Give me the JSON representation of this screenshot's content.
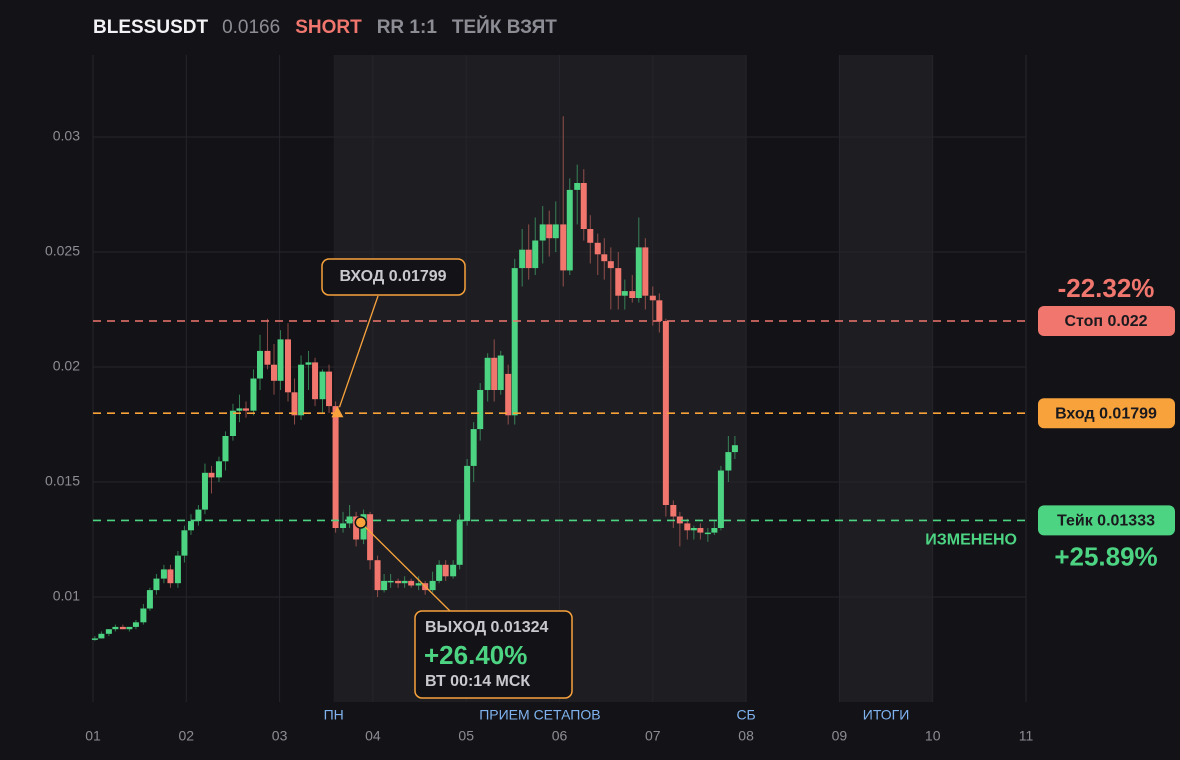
{
  "chart_data": {
    "type": "candlestick",
    "title": "BLESSUSDT",
    "price": "0.0166",
    "side": "SHORT",
    "rr": "RR 1:1",
    "status": "ТЕЙК ВЗЯТ",
    "up_color": "#4cd483",
    "down_color": "#f0766e",
    "grid": true,
    "xlim": [
      1,
      11
    ],
    "xticks": [
      {
        "value": 1,
        "label": "01"
      },
      {
        "value": 2,
        "label": "02"
      },
      {
        "value": 3,
        "label": "03"
      },
      {
        "value": 4,
        "label": "04"
      },
      {
        "value": 5,
        "label": "05"
      },
      {
        "value": 6,
        "label": "06"
      },
      {
        "value": 7,
        "label": "07"
      },
      {
        "value": 8,
        "label": "08"
      },
      {
        "value": 9,
        "label": "09"
      },
      {
        "value": 10,
        "label": "10"
      },
      {
        "value": 11,
        "label": "11"
      }
    ],
    "ylim": [
      0.005435,
      0.033565
    ],
    "yticks": [
      0.01,
      0.015,
      0.02,
      0.025,
      0.03
    ],
    "shaded": [
      [
        3.58,
        8
      ],
      [
        9,
        10
      ]
    ],
    "sessions": [
      {
        "label": "ПН",
        "x": 3.58
      },
      {
        "label": "ПРИЕМ СЕТАПОВ",
        "x": 5.79
      },
      {
        "label": "СБ",
        "x": 8
      },
      {
        "label": "ИТОГИ",
        "x": 9.5
      }
    ],
    "x": [
      1.02,
      1.09,
      1.17,
      1.24,
      1.32,
      1.39,
      1.46,
      1.54,
      1.61,
      1.68,
      1.76,
      1.83,
      1.91,
      1.98,
      2.05,
      2.13,
      2.2,
      2.27,
      2.35,
      2.42,
      2.5,
      2.57,
      2.64,
      2.72,
      2.79,
      2.87,
      2.94,
      3.01,
      3.09,
      3.16,
      3.23,
      3.31,
      3.38,
      3.46,
      3.53,
      3.6,
      3.68,
      3.75,
      3.82,
      3.9,
      3.97,
      4.05,
      4.12,
      4.19,
      4.27,
      4.34,
      4.41,
      4.49,
      4.56,
      4.64,
      4.71,
      4.78,
      4.86,
      4.93,
      5.01,
      5.08,
      5.15,
      5.23,
      5.3,
      5.37,
      5.45,
      5.52,
      5.6,
      5.67,
      5.74,
      5.82,
      5.89,
      5.96,
      6.04,
      6.11,
      6.19,
      6.26,
      6.33,
      6.41,
      6.48,
      6.55,
      6.63,
      6.7,
      6.78,
      6.85,
      6.92,
      7,
      7.07,
      7.14,
      7.22,
      7.29,
      7.37,
      7.44,
      7.51,
      7.59,
      7.66,
      7.73,
      7.81,
      7.88
    ],
    "open": [
      0.0082,
      0.0082,
      0.0084,
      0.0086,
      0.0087,
      0.0086,
      0.0087,
      0.0089,
      0.0095,
      0.0103,
      0.0108,
      0.0112,
      0.0106,
      0.0118,
      0.0129,
      0.0133,
      0.0138,
      0.0154,
      0.0152,
      0.0159,
      0.017,
      0.0181,
      0.0182,
      0.0181,
      0.0195,
      0.0207,
      0.0201,
      0.0194,
      0.0212,
      0.0189,
      0.0179,
      0.0201,
      0.0202,
      0.0186,
      0.0198,
      0.0183,
      0.013,
      0.0132,
      0.0135,
      0.0125,
      0.0136,
      0.0116,
      0.0103,
      0.0107,
      0.0107,
      0.0106,
      0.0107,
      0.0105,
      0.0106,
      0.0103,
      0.0107,
      0.0114,
      0.0109,
      0.0114,
      0.0133,
      0.0157,
      0.0173,
      0.019,
      0.0204,
      0.019,
      0.0197,
      0.0179,
      0.0243,
      0.0251,
      0.0243,
      0.0255,
      0.0262,
      0.0256,
      0.0262,
      0.0242,
      0.0277,
      0.028,
      0.026,
      0.0254,
      0.0249,
      0.0246,
      0.0243,
      0.0231,
      0.0233,
      0.023,
      0.0252,
      0.0231,
      0.0229,
      0.022,
      0.014,
      0.0135,
      0.0132,
      0.0129,
      0.013,
      0.0128,
      0.0128,
      0.013,
      0.0155,
      0.0163
    ],
    "high": [
      0.0083,
      0.0085,
      0.0086,
      0.0088,
      0.0088,
      0.0087,
      0.009,
      0.0097,
      0.0104,
      0.011,
      0.0114,
      0.0114,
      0.012,
      0.0131,
      0.0136,
      0.014,
      0.0158,
      0.0157,
      0.0161,
      0.0172,
      0.0184,
      0.0188,
      0.0185,
      0.0199,
      0.0214,
      0.0221,
      0.021,
      0.0216,
      0.0219,
      0.0195,
      0.0205,
      0.0207,
      0.0204,
      0.0199,
      0.0201,
      0.0185,
      0.0137,
      0.014,
      0.0137,
      0.0138,
      0.0137,
      0.0118,
      0.011,
      0.011,
      0.0108,
      0.0109,
      0.0108,
      0.0109,
      0.0107,
      0.0111,
      0.0116,
      0.0116,
      0.0116,
      0.0136,
      0.016,
      0.0176,
      0.0193,
      0.0206,
      0.0212,
      0.0207,
      0.0201,
      0.0247,
      0.026,
      0.0262,
      0.0265,
      0.027,
      0.0268,
      0.0272,
      0.0309,
      0.0282,
      0.0288,
      0.0286,
      0.0266,
      0.0258,
      0.0256,
      0.0252,
      0.025,
      0.0238,
      0.024,
      0.0265,
      0.0256,
      0.0235,
      0.0232,
      0.0221,
      0.0142,
      0.0137,
      0.0134,
      0.0131,
      0.0132,
      0.013,
      0.0133,
      0.0157,
      0.017,
      0.017
    ],
    "low": [
      0.0081,
      0.0082,
      0.0083,
      0.0085,
      0.0086,
      0.0085,
      0.0086,
      0.0088,
      0.0094,
      0.0101,
      0.0106,
      0.0104,
      0.0104,
      0.0115,
      0.0127,
      0.0131,
      0.0136,
      0.0145,
      0.015,
      0.0155,
      0.0168,
      0.0176,
      0.0178,
      0.0179,
      0.019,
      0.0199,
      0.0188,
      0.019,
      0.0185,
      0.0175,
      0.0177,
      0.019,
      0.0183,
      0.018,
      0.018,
      0.0128,
      0.0128,
      0.013,
      0.0122,
      0.0123,
      0.0112,
      0.01,
      0.0102,
      0.0104,
      0.0104,
      0.0104,
      0.0104,
      0.0103,
      0.0101,
      0.0102,
      0.0106,
      0.0107,
      0.0108,
      0.0112,
      0.0131,
      0.015,
      0.0168,
      0.0185,
      0.0185,
      0.0188,
      0.0175,
      0.0175,
      0.0235,
      0.0238,
      0.024,
      0.0245,
      0.0248,
      0.025,
      0.0235,
      0.024,
      0.0262,
      0.0255,
      0.0245,
      0.024,
      0.0238,
      0.0225,
      0.0225,
      0.0225,
      0.0228,
      0.0228,
      0.0225,
      0.0218,
      0.0215,
      0.0135,
      0.013,
      0.0122,
      0.0125,
      0.0125,
      0.0125,
      0.0124,
      0.0127,
      0.0129,
      0.015,
      0.016
    ],
    "close": [
      0.0082,
      0.0084,
      0.0086,
      0.0087,
      0.0086,
      0.0087,
      0.0089,
      0.0095,
      0.0103,
      0.0108,
      0.0112,
      0.0106,
      0.0118,
      0.0129,
      0.0133,
      0.0138,
      0.0154,
      0.0152,
      0.0159,
      0.017,
      0.0181,
      0.0182,
      0.0181,
      0.0195,
      0.0207,
      0.0201,
      0.0194,
      0.0212,
      0.0189,
      0.0179,
      0.0201,
      0.0202,
      0.0186,
      0.0198,
      0.0183,
      0.013,
      0.0132,
      0.0135,
      0.0125,
      0.0136,
      0.0116,
      0.0103,
      0.0107,
      0.0107,
      0.0106,
      0.0107,
      0.0105,
      0.0106,
      0.0103,
      0.0107,
      0.0114,
      0.0109,
      0.0114,
      0.0133,
      0.0157,
      0.0173,
      0.019,
      0.0204,
      0.019,
      0.0205,
      0.0179,
      0.0243,
      0.0251,
      0.0243,
      0.0255,
      0.0262,
      0.0256,
      0.0262,
      0.0242,
      0.0277,
      0.028,
      0.026,
      0.0254,
      0.0249,
      0.0246,
      0.0243,
      0.0231,
      0.0233,
      0.023,
      0.0252,
      0.0231,
      0.0229,
      0.022,
      0.014,
      0.0135,
      0.0132,
      0.0129,
      0.013,
      0.0128,
      0.0128,
      0.013,
      0.0155,
      0.0163,
      0.0166
    ],
    "levels": [
      {
        "label": "Стоп 0.022",
        "value": 0.022,
        "color": "#f0766e",
        "pct": "-22.32%"
      },
      {
        "label": "Вход 0.01799",
        "value": 0.01799,
        "color": "#f8a23c"
      },
      {
        "label": "Тейк 0.01333",
        "value": 0.01333,
        "color": "#4cd483",
        "pct": "+25.89%",
        "note": "ИЗМЕНЕНО"
      }
    ],
    "entry": {
      "label": "ВХОД 0.01799",
      "x": 3.62,
      "y": 0.01799
    },
    "exit": {
      "label": "ВЫХОД 0.01324",
      "pnl": "+26.40%",
      "time": "ВТ 00:14 МСК",
      "x": 3.87,
      "y": 0.01324
    }
  }
}
